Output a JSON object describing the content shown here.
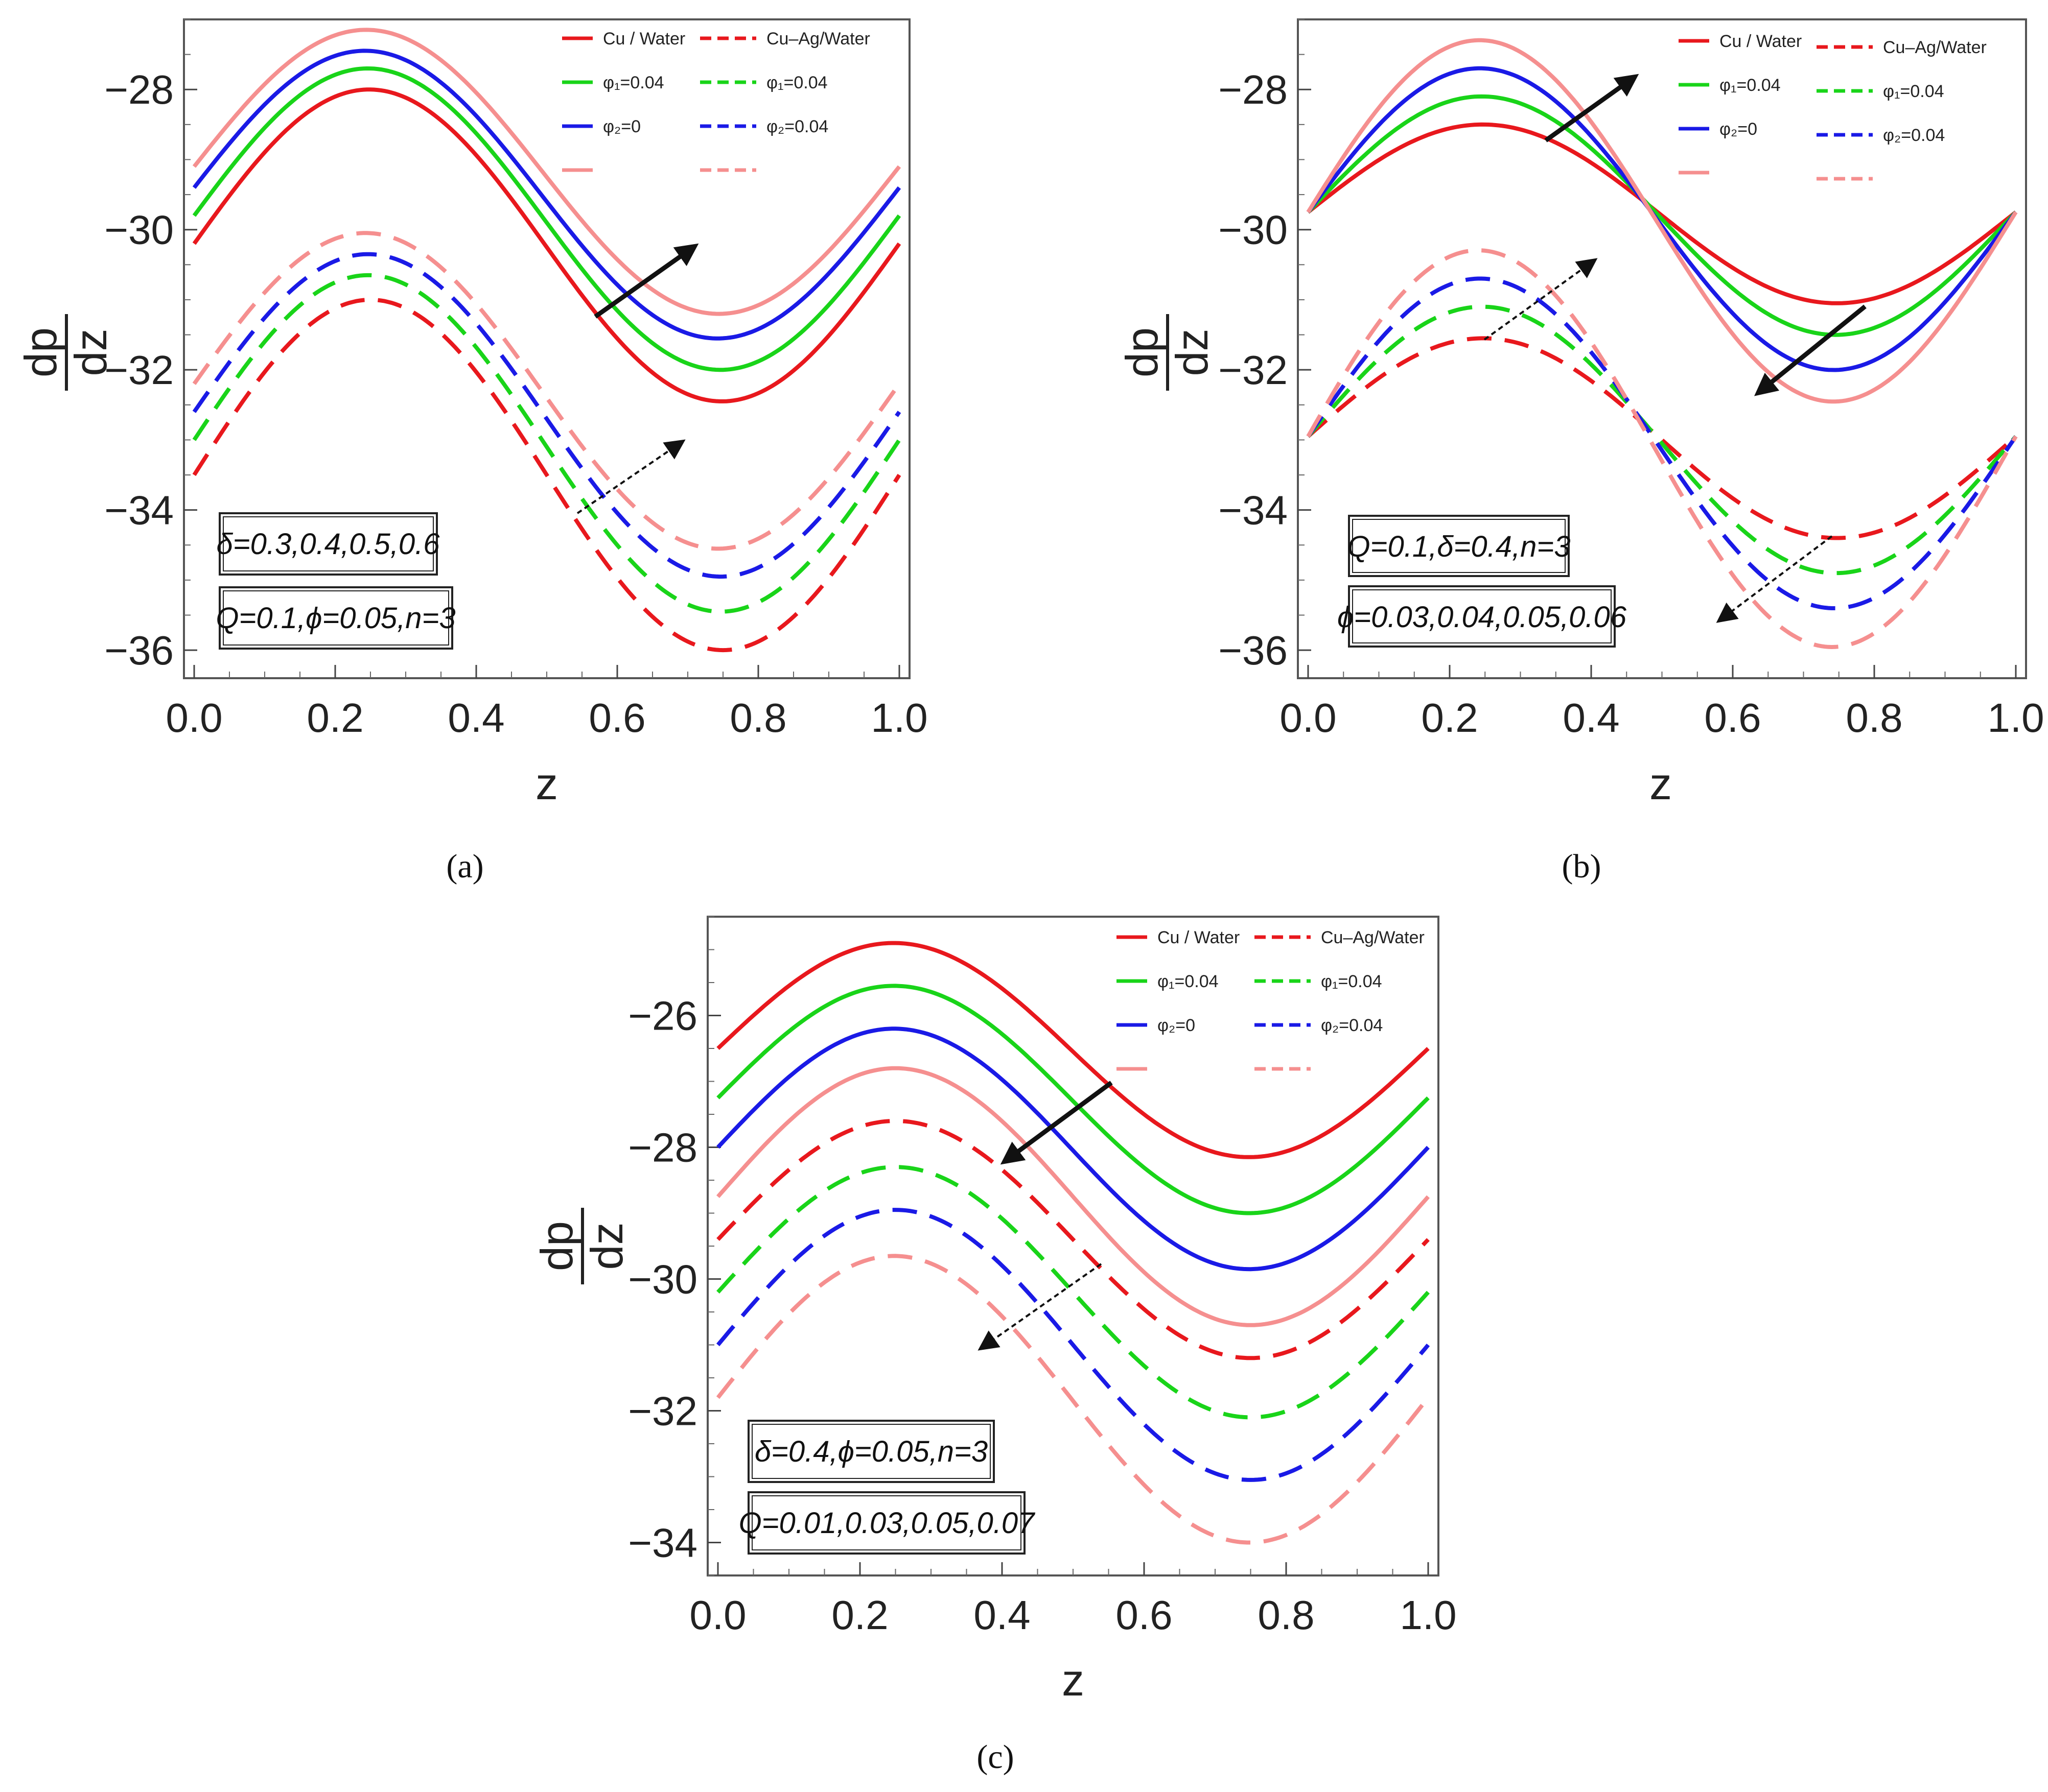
{
  "chart_data": [
    {
      "panel": "(a)",
      "type": "line",
      "xlabel": "z",
      "ylabel_num": "dp",
      "ylabel_den": "dz",
      "xlim": [
        0,
        1
      ],
      "ylim": [
        -36.4,
        -27
      ],
      "xticks": [
        "0.0",
        "0.2",
        "0.4",
        "0.6",
        "0.8",
        "1.0"
      ],
      "yticks": [
        -28,
        -30,
        -32,
        -34,
        -36
      ],
      "yticklabels": [
        "−28",
        "−30",
        "−32",
        "−34",
        "−36"
      ],
      "legend": {
        "placement": "top-right",
        "solid": [
          "Cu / Water",
          "φ₁=0.04",
          "φ₂=0",
          ""
        ],
        "dashed": [
          "Cu–Ag/Water",
          "φ₁=0.04",
          "φ₂=0.04",
          ""
        ]
      },
      "params": [
        "δ=0.3,0.4,0.5,0.6",
        "Q=0.1,ϕ=0.05,n=3"
      ],
      "series": [
        {
          "style": "solid",
          "color": "#e8181d",
          "x": [
            0,
            0.25,
            0.75,
            1
          ],
          "y": [
            -30.2,
            -28.0,
            -32.45,
            -30.2
          ]
        },
        {
          "style": "solid",
          "color": "#19d419",
          "x": [
            0,
            0.25,
            0.75,
            1
          ],
          "y": [
            -29.8,
            -27.7,
            -32.0,
            -29.8
          ]
        },
        {
          "style": "solid",
          "color": "#1a1ae6",
          "x": [
            0,
            0.25,
            0.75,
            1
          ],
          "y": [
            -29.4,
            -27.45,
            -31.55,
            -29.4
          ]
        },
        {
          "style": "solid",
          "color": "#f58f8f",
          "x": [
            0,
            0.25,
            0.75,
            1
          ],
          "y": [
            -29.1,
            -27.15,
            -31.2,
            -29.1
          ]
        },
        {
          "style": "dashed",
          "color": "#e8181d",
          "x": [
            0,
            0.25,
            0.75,
            1
          ],
          "y": [
            -33.5,
            -31.0,
            -36.0,
            -33.5
          ]
        },
        {
          "style": "dashed",
          "color": "#19d419",
          "x": [
            0,
            0.25,
            0.75,
            1
          ],
          "y": [
            -33.0,
            -30.65,
            -35.45,
            -33.0
          ]
        },
        {
          "style": "dashed",
          "color": "#1a1ae6",
          "x": [
            0,
            0.25,
            0.75,
            1
          ],
          "y": [
            -32.6,
            -30.35,
            -34.95,
            -32.6
          ]
        },
        {
          "style": "dashed",
          "color": "#f58f8f",
          "x": [
            0,
            0.25,
            0.75,
            1
          ],
          "y": [
            -32.2,
            -30.05,
            -34.55,
            -32.2
          ]
        }
      ]
    },
    {
      "panel": "(b)",
      "type": "line",
      "xlabel": "z",
      "ylabel_num": "dp",
      "ylabel_den": "dz",
      "xlim": [
        0,
        1
      ],
      "ylim": [
        -36.4,
        -27
      ],
      "xticks": [
        "0.0",
        "0.2",
        "0.4",
        "0.6",
        "0.8",
        "1.0"
      ],
      "yticks": [
        -28,
        -30,
        -32,
        -34,
        -36
      ],
      "yticklabels": [
        "−28",
        "−30",
        "−32",
        "−34",
        "−36"
      ],
      "legend": {
        "placement": "top-right",
        "solid": [
          "Cu / Water",
          "φ₁=0.04",
          "φ₂=0",
          ""
        ],
        "dashed": [
          "Cu–Ag/Water",
          "φ₁=0.04",
          "φ₂=0.04",
          ""
        ]
      },
      "params": [
        "Q=0.1,δ=0.4,n=3",
        "ϕ=0.03,0.04,0.05,0.06"
      ],
      "series": [
        {
          "style": "solid",
          "color": "#e8181d",
          "x": [
            0,
            0.25,
            0.75,
            1
          ],
          "y": [
            -29.75,
            -28.5,
            -31.05,
            -29.75
          ]
        },
        {
          "style": "solid",
          "color": "#19d419",
          "x": [
            0,
            0.25,
            0.75,
            1
          ],
          "y": [
            -29.75,
            -28.1,
            -31.5,
            -29.75
          ]
        },
        {
          "style": "solid",
          "color": "#1a1ae6",
          "x": [
            0,
            0.25,
            0.75,
            1
          ],
          "y": [
            -29.75,
            -27.7,
            -32.0,
            -29.75
          ]
        },
        {
          "style": "solid",
          "color": "#f58f8f",
          "x": [
            0,
            0.25,
            0.75,
            1
          ],
          "y": [
            -29.75,
            -27.3,
            -32.45,
            -29.75
          ]
        },
        {
          "style": "dashed",
          "color": "#e8181d",
          "x": [
            0,
            0.25,
            0.75,
            1
          ],
          "y": [
            -32.95,
            -31.55,
            -34.4,
            -32.95
          ]
        },
        {
          "style": "dashed",
          "color": "#19d419",
          "x": [
            0,
            0.25,
            0.75,
            1
          ],
          "y": [
            -32.95,
            -31.1,
            -34.9,
            -32.95
          ]
        },
        {
          "style": "dashed",
          "color": "#1a1ae6",
          "x": [
            0,
            0.25,
            0.75,
            1
          ],
          "y": [
            -32.95,
            -30.7,
            -35.4,
            -32.95
          ]
        },
        {
          "style": "dashed",
          "color": "#f58f8f",
          "x": [
            0,
            0.25,
            0.75,
            1
          ],
          "y": [
            -32.95,
            -30.3,
            -35.95,
            -32.95
          ]
        }
      ]
    },
    {
      "panel": "(c)",
      "type": "line",
      "xlabel": "z",
      "ylabel_num": "dp",
      "ylabel_den": "dz",
      "xlim": [
        0,
        1
      ],
      "ylim": [
        -34.5,
        -24.5
      ],
      "xticks": [
        "0.0",
        "0.2",
        "0.4",
        "0.6",
        "0.8",
        "1.0"
      ],
      "yticks": [
        -26,
        -28,
        -30,
        -32,
        -34
      ],
      "yticklabels": [
        "−26",
        "−28",
        "−30",
        "−32",
        "−34"
      ],
      "legend": {
        "placement": "top-right",
        "solid": [
          "Cu / Water",
          "φ₁=0.04",
          "φ₂=0",
          ""
        ],
        "dashed": [
          "Cu–Ag/Water",
          "φ₁=0.04",
          "φ₂=0.04",
          ""
        ]
      },
      "params": [
        "δ=0.4,ϕ=0.05,n=3",
        "Q=0.01,0.03,0.05,0.07"
      ],
      "series": [
        {
          "style": "solid",
          "color": "#e8181d",
          "x": [
            0,
            0.25,
            0.75,
            1
          ],
          "y": [
            -26.5,
            -24.9,
            -28.15,
            -26.5
          ]
        },
        {
          "style": "solid",
          "color": "#19d419",
          "x": [
            0,
            0.25,
            0.75,
            1
          ],
          "y": [
            -27.25,
            -25.55,
            -29.0,
            -27.25
          ]
        },
        {
          "style": "solid",
          "color": "#1a1ae6",
          "x": [
            0,
            0.25,
            0.75,
            1
          ],
          "y": [
            -28.0,
            -26.2,
            -29.85,
            -28.0
          ]
        },
        {
          "style": "solid",
          "color": "#f58f8f",
          "x": [
            0,
            0.25,
            0.75,
            1
          ],
          "y": [
            -28.75,
            -26.8,
            -30.7,
            -28.75
          ]
        },
        {
          "style": "dashed",
          "color": "#e8181d",
          "x": [
            0,
            0.25,
            0.75,
            1
          ],
          "y": [
            -29.4,
            -27.6,
            -31.2,
            -29.4
          ]
        },
        {
          "style": "dashed",
          "color": "#19d419",
          "x": [
            0,
            0.25,
            0.75,
            1
          ],
          "y": [
            -30.2,
            -28.3,
            -32.1,
            -30.2
          ]
        },
        {
          "style": "dashed",
          "color": "#1a1ae6",
          "x": [
            0,
            0.25,
            0.75,
            1
          ],
          "y": [
            -31.0,
            -28.95,
            -33.05,
            -31.0
          ]
        },
        {
          "style": "dashed",
          "color": "#f58f8f",
          "x": [
            0,
            0.25,
            0.75,
            1
          ],
          "y": [
            -31.8,
            -29.65,
            -34.0,
            -31.8
          ]
        }
      ]
    }
  ]
}
